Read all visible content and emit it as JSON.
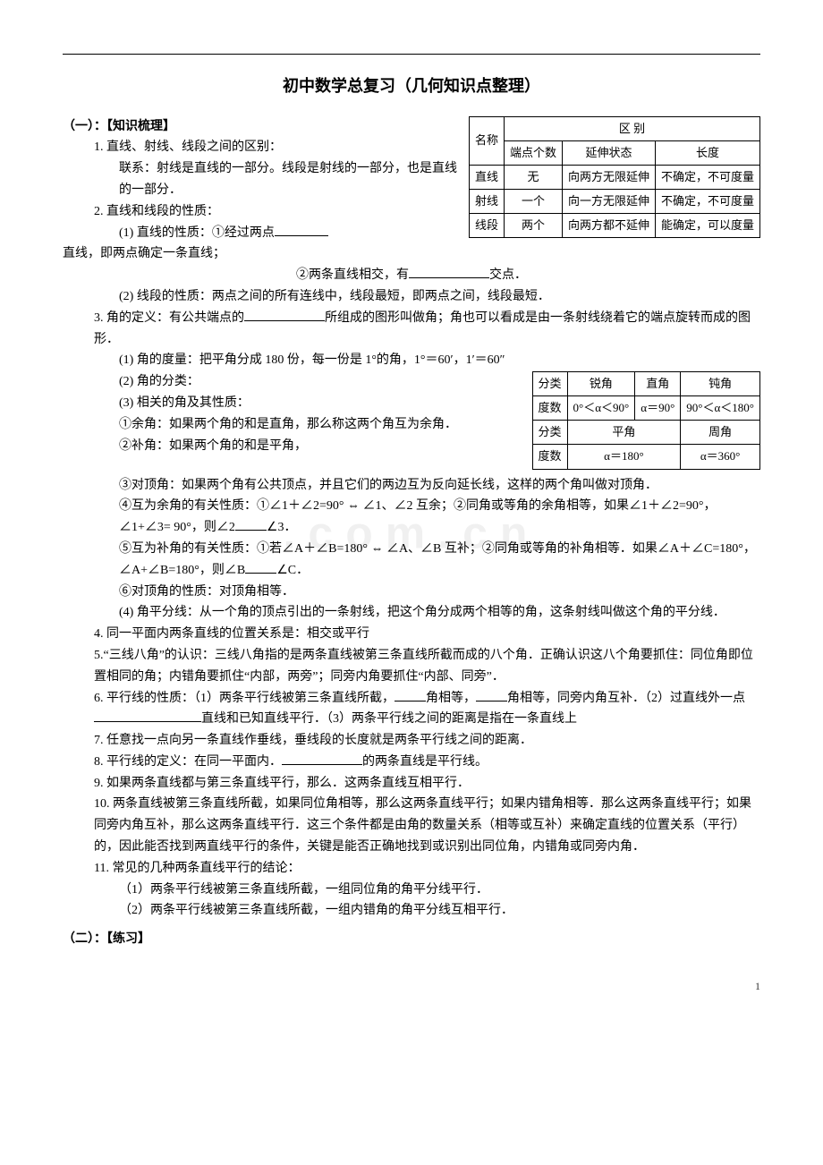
{
  "title": "初中数学总复习（几何知识点整理）",
  "watermark": ".com.cn",
  "pageNumber": "1",
  "section1Head": "（一）：【知识梳理】",
  "section2Head": "（二）：【练习】",
  "table1": {
    "rows": [
      [
        "名称",
        "端点个数",
        "延伸状态",
        "长度"
      ],
      [
        "直线",
        "无",
        "向两方无限延伸",
        "不确定，不可度量"
      ],
      [
        "射线",
        "一个",
        "向一方无限延伸",
        "不确定，不可度量"
      ],
      [
        "线段",
        "两个",
        "向两方都不延伸",
        "能确定，可以度量"
      ]
    ],
    "headerSpan": "区 别"
  },
  "table2": {
    "rows1": [
      [
        "分类",
        "锐角",
        "直角",
        "钝角"
      ],
      [
        "度数",
        "0°＜α＜90°",
        "α＝90°",
        "90°＜α＜180°"
      ]
    ],
    "rows2": [
      [
        "分类",
        "平角",
        "周角"
      ],
      [
        "度数",
        "α＝180°",
        "α＝360°"
      ]
    ]
  },
  "lines": {
    "l1": "1. 直线、射线、线段之间的区别：",
    "l2": "联系：射线是直线的一部分。线段是射线的一部分，也是直线的一部分．",
    "l3": "2. 直线和线段的性质：",
    "l4": "(1) 直线的性质：①经过两点",
    "l4b": "直线，即两点确定一条直线；",
    "l5a": "②两条直线相交，有",
    "l5b": "交点．",
    "l6": "(2) 线段的性质：两点之间的所有连线中，线段最短，即两点之间，线段最短．",
    "l7a": "3. 角的定义：有公共端点的",
    "l7b": "所组成的图形叫做角；角也可以看成是由一条射线绕着它的端点旋转而成的图形．",
    "l8": "(1) 角的度量：把平角分成 180 份，每一份是 1°的角，1°＝60′，1′＝60″",
    "l9": "(2) 角的分类：",
    "l10": "(3) 相关的角及其性质：",
    "l11": "①余角：如果两个角的和是直角，那么称这两个角互为余角．",
    "l12": "②补角：如果两个角的和是平角，",
    "l13": "③对顶角：如果两个角有公共顶点，并且它们的两边互为反向延长线，这样的两个角叫做对顶角．",
    "l14a": "④互为余角的有关性质：①∠1＋∠2=90° ⇔ ∠1、∠2 互余；②同角或等角的余角相等，如果∠1＋∠2=90°，∠1+∠3= 90°，则∠2",
    "l14b": "∠3．",
    "l15a": "⑤互为补角的有关性质：①若∠A＋∠B=180° ⇔ ∠A、∠B 互补；②同角或等角的补角相等．如果∠A＋∠C=180°，∠A+∠B=180°，则∠B",
    "l15b": "∠C．",
    "l16": "⑥对顶角的性质：对顶角相等．",
    "l17": "(4) 角平分线：从一个角的顶点引出的一条射线，把这个角分成两个相等的角，这条射线叫做这个角的平分线．",
    "l18": "4. 同一平面内两条直线的位置关系是：相交或平行",
    "l19": "5.“三线八角”的认识：三线八角指的是两条直线被第三条直线所截而成的八个角．正确认识这八个角要抓住：同位角即位置相同的角；内错角要抓住“内部，两旁”；同旁内角要抓住“内部、同旁”．",
    "l20a": "6. 平行线的性质：（1）两条平行线被第三条直线所截，",
    "l20b": "角相等，",
    "l20c": "角相等，同旁内角互补．（2）过直线外一点",
    "l20d": "直线和已知直线平行．（3）两条平行线之间的距离是指在一条直线上",
    "l21": "7. 任意找一点向另一条直线作垂线，垂线段的长度就是两条平行线之间的距离．",
    "l22a": "8. 平行线的定义：在同一平面内．",
    "l22b": "的两条直线是平行线。",
    "l23": "9. 如果两条直线都与第三条直线平行，那么．这两条直线互相平行．",
    "l24": "10. 两条直线被第三条直线所截，如果同位角相等，那么这两条直线平行；如果内错角相等．那么这两条直线平行；如果同旁内角互补，那么这两条直线平行．这三个条件都是由角的数量关系（相等或互补）来确定直线的位置关系（平行）的，因此能否找到两直线平行的条件，关键是能否正确地找到或识别出同位角，内错角或同旁内角．",
    "l25": "11. 常见的几种两条直线平行的结论：",
    "l26": "（1）两条平行线被第三条直线所截，一组同位角的角平分线平行．",
    "l27": "（2）两条平行线被第三条直线所截，一组内错角的角平分线互相平行．"
  }
}
